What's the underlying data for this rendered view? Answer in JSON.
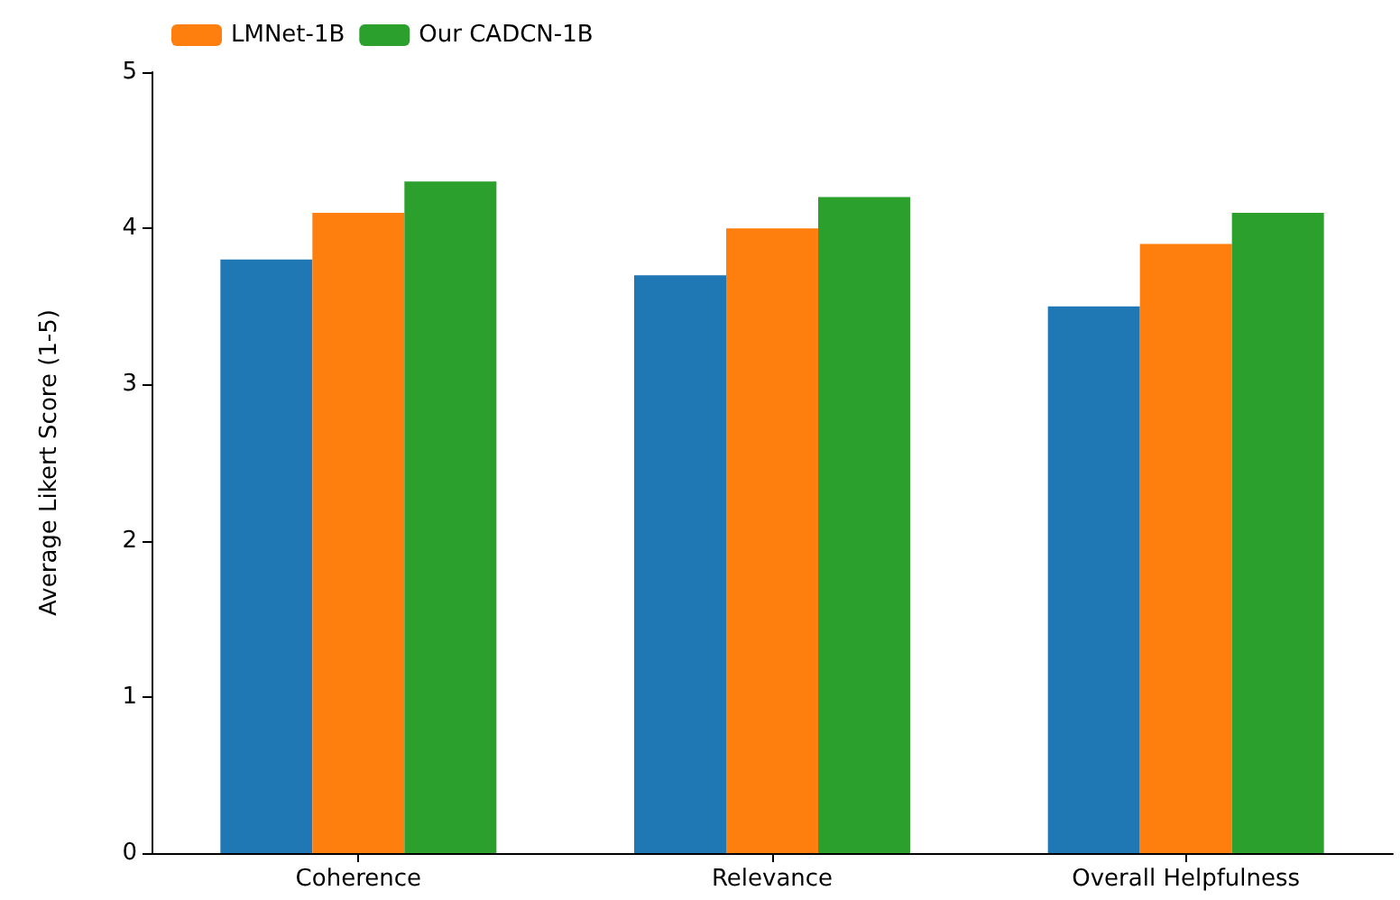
{
  "chart_data": {
    "type": "bar",
    "ylabel": "Average Likert Score (1-5)",
    "categories": [
      "Coherence",
      "Relevance",
      "Overall Helpfulness"
    ],
    "series": [
      {
        "color": "#1f77b4",
        "values": [
          3.8,
          3.7,
          3.5
        ]
      },
      {
        "name": "LMNet-1B",
        "color": "#ff7f0e",
        "values": [
          4.1,
          4.0,
          3.9
        ]
      },
      {
        "name": "Our CADCN-1B",
        "color": "#2ca02c",
        "values": [
          4.3,
          4.2,
          4.1
        ]
      }
    ],
    "ylim": [
      0,
      5
    ],
    "yticks": [
      0,
      1,
      2,
      3,
      4,
      5
    ],
    "grid": false,
    "legend": "top left"
  }
}
